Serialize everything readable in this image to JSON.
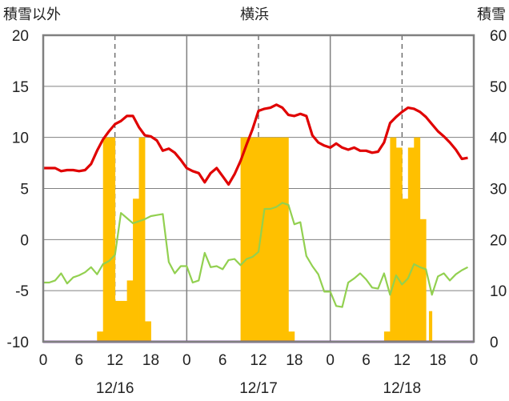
{
  "chart_data": {
    "type": "bar+line",
    "title": "横浜",
    "left_axis_label": "積雪以外",
    "right_axis_label": "積雪",
    "left_ylim": [
      -10,
      20
    ],
    "left_ticks": [
      "20",
      "15",
      "10",
      "5",
      "0",
      "-5",
      "-10"
    ],
    "right_ylim": [
      0,
      60
    ],
    "right_ticks": [
      "60",
      "50",
      "40",
      "30",
      "20",
      "10",
      "0"
    ],
    "x_hours_range": [
      0,
      72
    ],
    "x_tick_labels": [
      "0",
      "6",
      "12",
      "18",
      "0",
      "6",
      "12",
      "18",
      "0",
      "6",
      "12",
      "18",
      "0"
    ],
    "date_labels": [
      "12/16",
      "12/17",
      "12/18"
    ],
    "grid": "dashed vertical lines at 12h, solid day separators",
    "colors": {
      "red_line": "#e00000",
      "green_line": "#92d050",
      "bars": "#ffc000",
      "baseline": "#7030a0",
      "frame": "#808080"
    },
    "series": [
      {
        "type": "bar",
        "axis": "right",
        "x": [
          9.0,
          9.5,
          10.0,
          10.5,
          11.0,
          11.5,
          12.0,
          12.5,
          13.0,
          13.5,
          14.0,
          14.5,
          15.0,
          15.5,
          16.0,
          16.5,
          17.0,
          17.5,
          33.0,
          33.5,
          34.0,
          34.5,
          35.0,
          35.5,
          36.0,
          36.5,
          37.0,
          37.5,
          38.0,
          38.5,
          39.0,
          39.5,
          40.0,
          40.5,
          41.0,
          41.5,
          57.0,
          57.5,
          58.0,
          58.5,
          59.0,
          59.5,
          60.0,
          60.5,
          61.0,
          61.5,
          62.0,
          62.5,
          63.0,
          63.5,
          64.5
        ],
        "values": [
          2,
          2,
          40,
          40,
          40,
          40,
          8,
          8,
          8,
          8,
          12,
          12,
          28,
          28,
          40,
          40,
          4,
          4,
          40,
          40,
          40,
          40,
          40,
          40,
          40,
          40,
          40,
          40,
          40,
          40,
          40,
          40,
          40,
          40,
          2,
          2,
          2,
          2,
          40,
          40,
          38,
          38,
          28,
          28,
          38,
          38,
          40,
          40,
          24,
          24,
          6
        ]
      },
      {
        "type": "line",
        "axis": "left",
        "x": [
          0,
          1,
          2,
          3,
          4,
          5,
          6,
          7,
          8,
          9,
          10,
          11,
          12,
          13,
          14,
          15,
          16,
          17,
          18,
          19,
          20,
          21,
          22,
          23,
          24,
          25,
          26,
          27,
          28,
          29,
          30,
          31,
          32,
          33,
          34,
          35,
          36,
          37,
          38,
          39,
          40,
          41,
          42,
          43,
          44,
          45,
          46,
          47,
          48,
          49,
          50,
          51,
          52,
          53,
          54,
          55,
          56,
          57,
          58,
          59,
          60,
          61,
          62,
          63,
          64,
          65,
          66,
          67,
          68,
          69,
          70,
          71
        ],
        "values": [
          7.0,
          7.0,
          7.0,
          6.7,
          6.8,
          6.8,
          6.7,
          6.8,
          7.4,
          8.7,
          9.8,
          10.6,
          11.3,
          11.6,
          12.1,
          12.1,
          11.0,
          10.2,
          10.1,
          9.7,
          8.7,
          8.9,
          8.5,
          7.8,
          7.0,
          6.7,
          6.5,
          5.6,
          6.5,
          7.0,
          6.2,
          5.4,
          6.4,
          7.7,
          9.3,
          10.8,
          12.6,
          12.8,
          12.9,
          13.2,
          12.9,
          12.2,
          12.1,
          12.3,
          12.1,
          10.2,
          9.5,
          9.2,
          9.0,
          9.4,
          9.0,
          8.8,
          9.0,
          8.7,
          8.7,
          8.5,
          8.6,
          9.5,
          11.4,
          12.0,
          12.5,
          12.9,
          12.8,
          12.5,
          12.0,
          11.3,
          10.6,
          10.1,
          9.5,
          8.8,
          7.9,
          8.0
        ]
      },
      {
        "type": "line",
        "axis": "left",
        "x": [
          0,
          1,
          2,
          3,
          4,
          5,
          6,
          7,
          8,
          9,
          10,
          11,
          12,
          13,
          14,
          15,
          16,
          17,
          18,
          19,
          20,
          21,
          22,
          23,
          24,
          25,
          26,
          27,
          28,
          29,
          30,
          31,
          32,
          33,
          34,
          35,
          36,
          37,
          38,
          39,
          40,
          41,
          42,
          43,
          44,
          45,
          46,
          47,
          48,
          49,
          50,
          51,
          52,
          53,
          54,
          55,
          56,
          57,
          58,
          59,
          60,
          61,
          62,
          63,
          64,
          65,
          66,
          67,
          68,
          69,
          70,
          71
        ],
        "values": [
          -4.2,
          -4.2,
          -4.0,
          -3.3,
          -4.3,
          -3.7,
          -3.5,
          -3.2,
          -2.7,
          -3.4,
          -2.4,
          -2.1,
          -1.5,
          2.6,
          2.1,
          1.6,
          1.8,
          2.0,
          2.3,
          2.4,
          2.5,
          -2.2,
          -3.3,
          -2.6,
          -2.6,
          -4.2,
          -4.0,
          -1.3,
          -2.7,
          -2.6,
          -2.9,
          -2.0,
          -1.9,
          -2.5,
          -1.9,
          -1.7,
          -1.2,
          3.0,
          3.0,
          3.2,
          3.6,
          3.4,
          1.5,
          1.7,
          -1.6,
          -2.6,
          -3.4,
          -5.1,
          -5.1,
          -6.5,
          -6.6,
          -4.2,
          -3.8,
          -3.3,
          -3.9,
          -4.7,
          -4.8,
          -3.3,
          -5.4,
          -3.5,
          -4.4,
          -3.8,
          -2.4,
          -2.7,
          -2.9,
          -5.4,
          -3.6,
          -3.3,
          -4.0,
          -3.4,
          -3.0,
          -2.7
        ]
      },
      {
        "type": "line",
        "axis": "left",
        "x": [
          0,
          72
        ],
        "values": [
          -10,
          -10
        ]
      }
    ]
  }
}
